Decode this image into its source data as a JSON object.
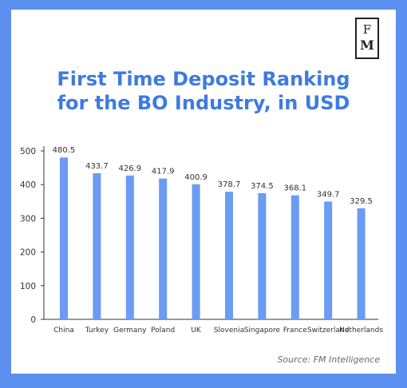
{
  "logo": {
    "line1": "F",
    "line2": "M"
  },
  "title_line1": "First Time Deposit Ranking",
  "title_line2": "for the BO Industry, in USD",
  "source": "Source: FM Intelligence",
  "colors": {
    "background": "#5b8ff0",
    "bar": "#6b9bf2",
    "title": "#3d7be0"
  },
  "chart_data": {
    "type": "bar",
    "title": "First Time Deposit Ranking for the BO Industry, in USD",
    "xlabel": "",
    "ylabel": "",
    "categories": [
      "China",
      "Turkey",
      "Germany",
      "Poland",
      "UK",
      "Slovenia",
      "Singapore",
      "France",
      "Switzerland",
      "Netherlands"
    ],
    "values": [
      480.5,
      433.7,
      426.9,
      417.9,
      400.9,
      378.7,
      374.5,
      368.1,
      349.7,
      329.5
    ],
    "value_labels": [
      "480.5",
      "433.7",
      "426.9",
      "417.9",
      "400.9",
      "378.7",
      "374.5",
      "368.1",
      "349.7",
      "329.5"
    ],
    "ylim": [
      0,
      500
    ],
    "yticks": [
      "0",
      "100",
      "200",
      "300",
      "400",
      "500"
    ],
    "grid": false,
    "legend": "none"
  }
}
